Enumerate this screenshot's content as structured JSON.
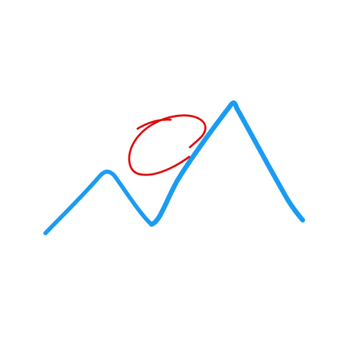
{
  "colors": {
    "background": "#ffffff",
    "mountain_stroke": "#1a9cf2",
    "sun_stroke": "#dd0d0d"
  },
  "drawing": {
    "elements": [
      {
        "name": "mountain-ridge-left",
        "kind": "freehand-stroke",
        "color_key": "mountain_stroke"
      },
      {
        "name": "mountain-ridge-right",
        "kind": "freehand-stroke",
        "color_key": "mountain_stroke"
      },
      {
        "name": "sun-scribble",
        "kind": "freehand-loop",
        "color_key": "sun_stroke"
      }
    ]
  }
}
